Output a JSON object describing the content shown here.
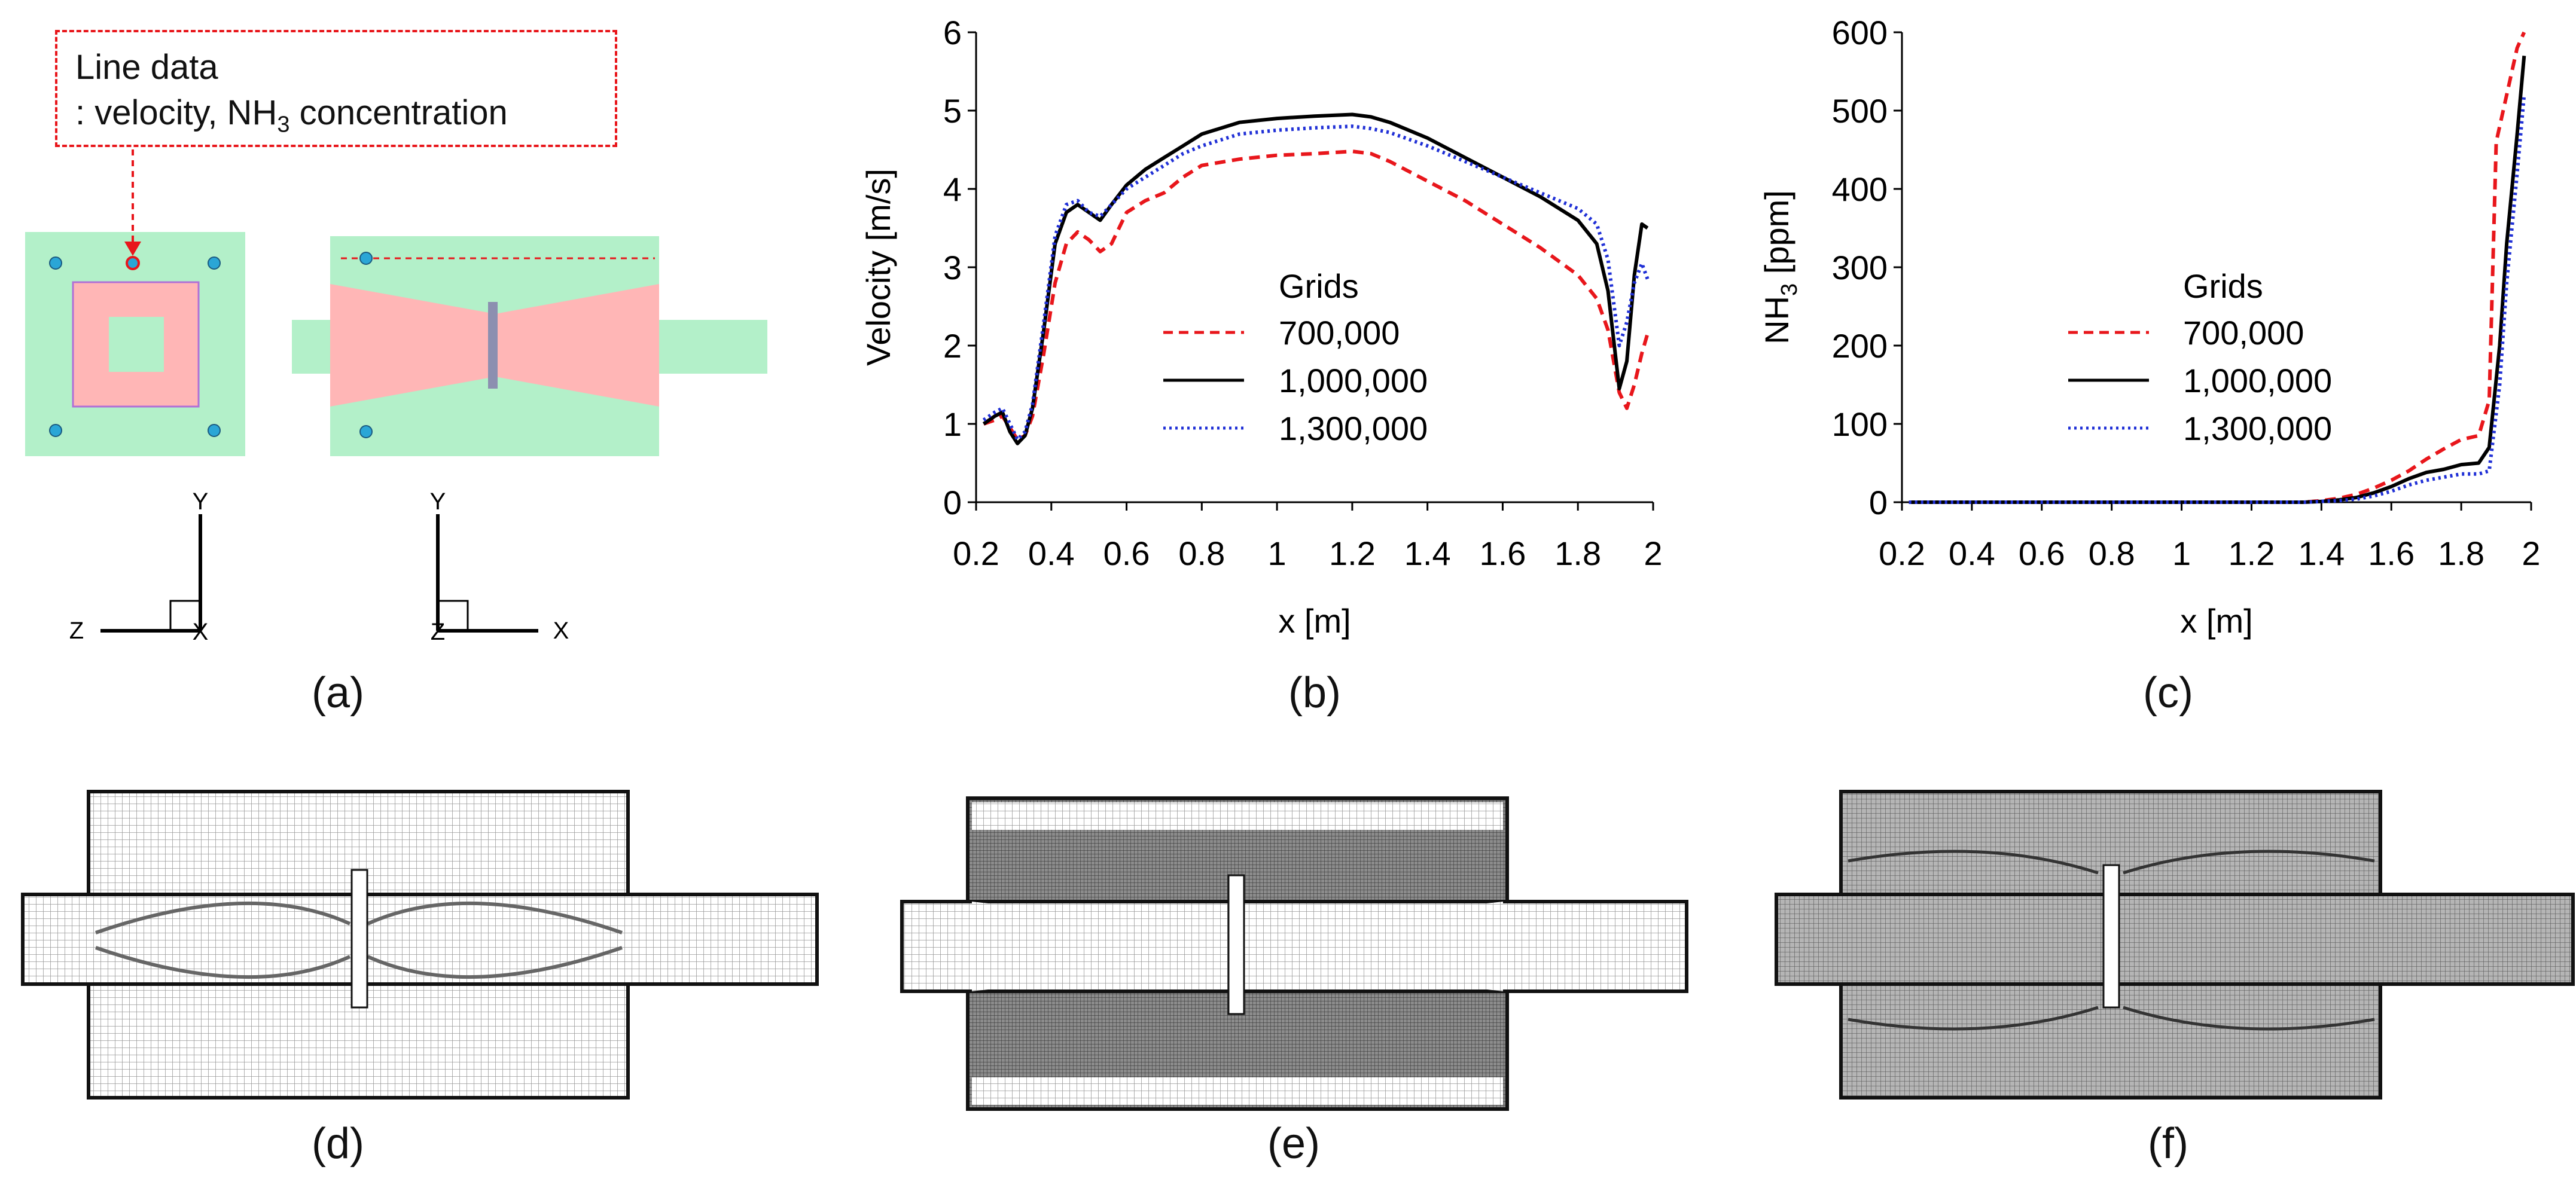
{
  "panel_labels": [
    "(a)",
    "(b)",
    "(c)",
    "(d)",
    "(e)",
    "(f)"
  ],
  "callout": {
    "title": "Line data",
    "line_prefix": ": velocity, NH",
    "line_sub": "3",
    "line_suffix": " concentration"
  },
  "axes_a": {
    "left": {
      "y": "Y",
      "z": "Z",
      "x": "X"
    },
    "right": {
      "y": "Y",
      "z": "Z",
      "x": "X"
    }
  },
  "colors": {
    "fluid": "#b3f0c9",
    "catalyst": "#ffb6b6",
    "marker": "#2aa6d6",
    "dashed_red": "#e8161b",
    "solid_black": "#000000",
    "dotted_blue": "#1f2fd6",
    "mesh_light": "#cfcfcf",
    "mesh_dark": "#5a5a5a"
  },
  "chart_data": [
    {
      "type": "line",
      "xlabel": "x [m]",
      "ylabel": "Velocity [m/s]",
      "xlim": [
        0.2,
        2.0
      ],
      "ylim": [
        0,
        6
      ],
      "xticks": [
        "0.2",
        "0.4",
        "0.6",
        "0.8",
        "1",
        "1.2",
        "1.4",
        "1.6",
        "1.8",
        "2"
      ],
      "yticks": [
        "0",
        "1",
        "2",
        "3",
        "4",
        "5",
        "6"
      ],
      "legend_title": "Grids",
      "series": [
        {
          "name": "700,000",
          "style": "dashed",
          "color": "#e8161b",
          "x": [
            0.22,
            0.25,
            0.27,
            0.29,
            0.31,
            0.33,
            0.35,
            0.38,
            0.41,
            0.44,
            0.47,
            0.5,
            0.53,
            0.56,
            0.6,
            0.65,
            0.7,
            0.75,
            0.8,
            0.9,
            1.0,
            1.1,
            1.2,
            1.25,
            1.3,
            1.4,
            1.5,
            1.6,
            1.7,
            1.8,
            1.85,
            1.88,
            1.91,
            1.93,
            1.95,
            1.97,
            1.985
          ],
          "y": [
            1.0,
            1.05,
            1.1,
            0.95,
            0.8,
            0.85,
            1.1,
            1.9,
            2.8,
            3.3,
            3.45,
            3.35,
            3.2,
            3.3,
            3.7,
            3.85,
            3.95,
            4.15,
            4.3,
            4.38,
            4.43,
            4.45,
            4.48,
            4.45,
            4.35,
            4.1,
            3.85,
            3.55,
            3.25,
            2.9,
            2.6,
            2.2,
            1.4,
            1.2,
            1.5,
            1.9,
            2.15
          ]
        },
        {
          "name": "1,000,000",
          "style": "solid",
          "color": "#000000",
          "x": [
            0.22,
            0.25,
            0.27,
            0.29,
            0.31,
            0.33,
            0.35,
            0.38,
            0.41,
            0.44,
            0.47,
            0.5,
            0.53,
            0.56,
            0.6,
            0.65,
            0.7,
            0.75,
            0.8,
            0.9,
            1.0,
            1.1,
            1.2,
            1.25,
            1.3,
            1.4,
            1.5,
            1.6,
            1.7,
            1.8,
            1.85,
            1.88,
            1.91,
            1.93,
            1.95,
            1.97,
            1.985
          ],
          "y": [
            1.0,
            1.1,
            1.15,
            0.9,
            0.75,
            0.85,
            1.2,
            2.2,
            3.3,
            3.7,
            3.8,
            3.7,
            3.6,
            3.8,
            4.05,
            4.25,
            4.4,
            4.55,
            4.7,
            4.85,
            4.9,
            4.93,
            4.95,
            4.92,
            4.85,
            4.65,
            4.4,
            4.15,
            3.9,
            3.6,
            3.3,
            2.7,
            1.45,
            1.8,
            2.9,
            3.55,
            3.5
          ]
        },
        {
          "name": "1,300,000",
          "style": "dotted",
          "color": "#1f2fd6",
          "x": [
            0.22,
            0.25,
            0.27,
            0.29,
            0.31,
            0.33,
            0.35,
            0.38,
            0.41,
            0.44,
            0.47,
            0.5,
            0.53,
            0.56,
            0.6,
            0.65,
            0.7,
            0.75,
            0.8,
            0.9,
            1.0,
            1.1,
            1.2,
            1.25,
            1.3,
            1.4,
            1.5,
            1.6,
            1.7,
            1.8,
            1.85,
            1.88,
            1.91,
            1.93,
            1.95,
            1.97,
            1.985
          ],
          "y": [
            1.05,
            1.15,
            1.2,
            1.0,
            0.8,
            0.9,
            1.25,
            2.3,
            3.4,
            3.8,
            3.85,
            3.7,
            3.65,
            3.8,
            4.0,
            4.15,
            4.3,
            4.45,
            4.55,
            4.7,
            4.75,
            4.78,
            4.8,
            4.77,
            4.72,
            4.55,
            4.35,
            4.15,
            3.95,
            3.75,
            3.55,
            3.1,
            2.0,
            2.3,
            2.8,
            3.05,
            2.85
          ]
        }
      ]
    },
    {
      "type": "line",
      "xlabel": "x [m]",
      "ylabel_prefix": "NH",
      "ylabel_sub": "3",
      "ylabel_suffix": " [ppm]",
      "xlim": [
        0.2,
        2.0
      ],
      "ylim": [
        0,
        600
      ],
      "xticks": [
        "0.2",
        "0.4",
        "0.6",
        "0.8",
        "1",
        "1.2",
        "1.4",
        "1.6",
        "1.8",
        "2"
      ],
      "yticks": [
        "0",
        "100",
        "200",
        "300",
        "400",
        "500",
        "600"
      ],
      "legend_title": "Grids",
      "series": [
        {
          "name": "700,000",
          "style": "dashed",
          "color": "#e8161b",
          "x": [
            0.22,
            0.4,
            0.6,
            0.8,
            1.0,
            1.2,
            1.35,
            1.4,
            1.45,
            1.5,
            1.55,
            1.6,
            1.65,
            1.7,
            1.75,
            1.8,
            1.85,
            1.88,
            1.9,
            1.93,
            1.96,
            1.98
          ],
          "y": [
            0,
            0,
            0,
            0,
            0,
            0,
            0,
            2,
            5,
            10,
            18,
            28,
            40,
            55,
            68,
            80,
            85,
            130,
            460,
            520,
            580,
            600
          ]
        },
        {
          "name": "1,000,000",
          "style": "solid",
          "color": "#000000",
          "x": [
            0.22,
            0.4,
            0.6,
            0.8,
            1.0,
            1.2,
            1.35,
            1.4,
            1.45,
            1.5,
            1.55,
            1.6,
            1.65,
            1.7,
            1.75,
            1.8,
            1.85,
            1.88,
            1.91,
            1.93,
            1.96,
            1.98
          ],
          "y": [
            0,
            0,
            0,
            0,
            0,
            0,
            0,
            1,
            3,
            6,
            12,
            20,
            30,
            38,
            42,
            48,
            50,
            70,
            200,
            330,
            470,
            570
          ]
        },
        {
          "name": "1,300,000",
          "style": "dotted",
          "color": "#1f2fd6",
          "x": [
            0.22,
            0.4,
            0.6,
            0.8,
            1.0,
            1.2,
            1.35,
            1.4,
            1.45,
            1.5,
            1.55,
            1.6,
            1.65,
            1.7,
            1.75,
            1.8,
            1.85,
            1.88,
            1.91,
            1.93,
            1.96,
            1.98
          ],
          "y": [
            0,
            0,
            0,
            0,
            0,
            0,
            0,
            1,
            2,
            4,
            8,
            14,
            22,
            28,
            32,
            36,
            36,
            40,
            150,
            280,
            420,
            520
          ]
        }
      ]
    }
  ]
}
